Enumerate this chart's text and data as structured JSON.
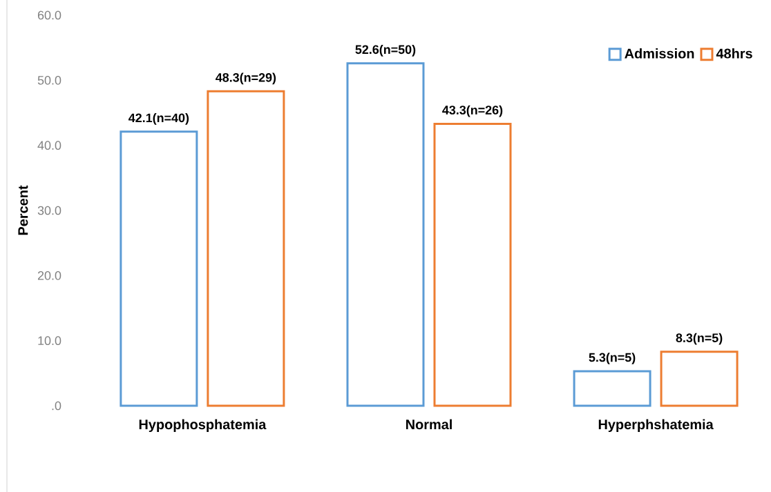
{
  "chart_data": {
    "type": "bar",
    "ylabel": "Percent",
    "categories": [
      "Hypophosphatemia",
      "Normal",
      "Hyperphshatemia"
    ],
    "series": [
      {
        "name": "Admission",
        "color": "#5b9bd5",
        "values": [
          42.1,
          52.6,
          5.3
        ],
        "value_labels": [
          "42.1(n=40)",
          "52.6(n=50)",
          "5.3(n=5)"
        ]
      },
      {
        "name": "48hrs",
        "color": "#ed7d31",
        "values": [
          48.3,
          43.3,
          8.3
        ],
        "value_labels": [
          "48.3(n=29)",
          "43.3(n=26)",
          "8.3(n=5)"
        ]
      }
    ],
    "ylim": [
      0,
      60
    ],
    "yticks": [
      {
        "value": 0,
        "label": ".0"
      },
      {
        "value": 10,
        "label": "10.0"
      },
      {
        "value": 20,
        "label": "20.0"
      },
      {
        "value": 30,
        "label": "30.0"
      },
      {
        "value": 40,
        "label": "40.0"
      },
      {
        "value": 50,
        "label": "50.0"
      },
      {
        "value": 60,
        "label": "60.0"
      }
    ],
    "legend": "top right",
    "grid": false
  }
}
